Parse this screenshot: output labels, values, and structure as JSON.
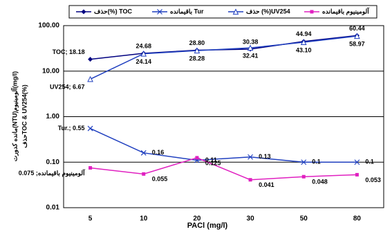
{
  "chart_data": {
    "type": "line",
    "categories": [
      "5",
      "10",
      "20",
      "30",
      "50",
      "80"
    ],
    "x_label": "PACl (mg/l)",
    "y_label": [
      "مانده کدورت(NTU)آلومینیوم(mg/l)",
      "حذفTOC & UV254(%)"
    ],
    "log_scale": true,
    "grid": true,
    "legend": "top",
    "ylim": [
      0.01,
      100
    ],
    "yticks": [
      {
        "value": 0.01,
        "label": "0.01"
      },
      {
        "value": 0.1,
        "label": "0.10"
      },
      {
        "value": 1,
        "label": "1.00"
      },
      {
        "value": 10,
        "label": "10.00"
      },
      {
        "value": 100,
        "label": "100.00"
      }
    ],
    "series": [
      {
        "name": "حذف(%) TOC",
        "color": "#000080",
        "marker": "diamond",
        "values": [
          18.18,
          24.68,
          28.8,
          30.38,
          44.94,
          60.44
        ],
        "value_labels": [
          "TOC; 18.18",
          "24.68",
          "28.80",
          "30.38",
          "44.94",
          "60.44"
        ]
      },
      {
        "name": "باقیمانده Tur",
        "color": "#1f3fbf",
        "marker": "x",
        "values": [
          0.55,
          0.16,
          0.11,
          0.13,
          0.1,
          0.1
        ],
        "value_labels": [
          "Tur.; 0.55",
          "0.16",
          "0.11",
          "0.13",
          "0.1",
          "0.1"
        ]
      },
      {
        "name": "حذف (%)UV254",
        "color": "#1f3fbf",
        "marker": "triangle",
        "values": [
          6.67,
          24.14,
          28.28,
          32.41,
          43.1,
          58.97
        ],
        "value_labels": [
          "UV254; 6.67",
          "24.14",
          "28.28",
          "32.41",
          "43.10",
          "58.97"
        ]
      },
      {
        "name": "آلومینیوم باقیمانده",
        "color": "#e020c0",
        "marker": "square",
        "values": [
          0.075,
          0.055,
          0.125,
          0.041,
          0.048,
          0.053
        ],
        "value_labels": [
          "آلومینیوم باقیمانده; 0.075",
          "0.055",
          "0.125",
          "0.041",
          "0.048",
          "0.053"
        ]
      }
    ]
  }
}
